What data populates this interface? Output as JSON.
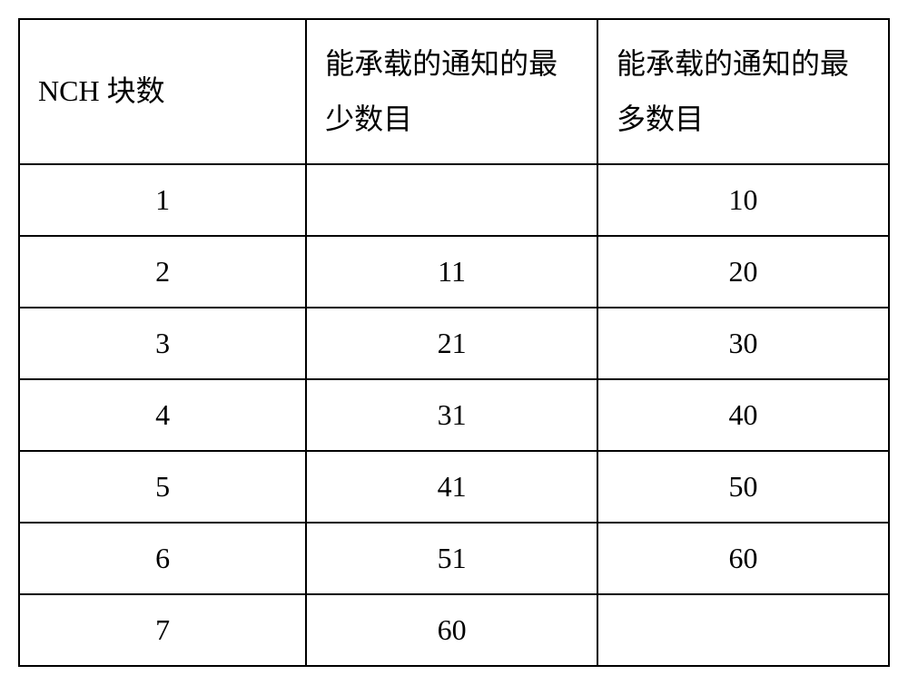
{
  "table": {
    "headers": {
      "col1": "NCH 块数",
      "col2": "能承载的通知的最少数目",
      "col3": "能承载的通知的最多数目"
    },
    "rows": [
      {
        "blocks": "1",
        "min": "",
        "max": "10"
      },
      {
        "blocks": "2",
        "min": "11",
        "max": "20"
      },
      {
        "blocks": "3",
        "min": "21",
        "max": "30"
      },
      {
        "blocks": "4",
        "min": "31",
        "max": "40"
      },
      {
        "blocks": "5",
        "min": "41",
        "max": "50"
      },
      {
        "blocks": "6",
        "min": "51",
        "max": "60"
      },
      {
        "blocks": "7",
        "min": "60",
        "max": ""
      }
    ],
    "style": {
      "border_color": "#000000",
      "border_width": 2,
      "background_color": "#ffffff",
      "text_color": "#000000",
      "header_fontsize": 32,
      "cell_fontsize": 32,
      "row_count": 7,
      "col_count": 3,
      "col_widths_pct": [
        33,
        33.5,
        33.5
      ]
    }
  }
}
